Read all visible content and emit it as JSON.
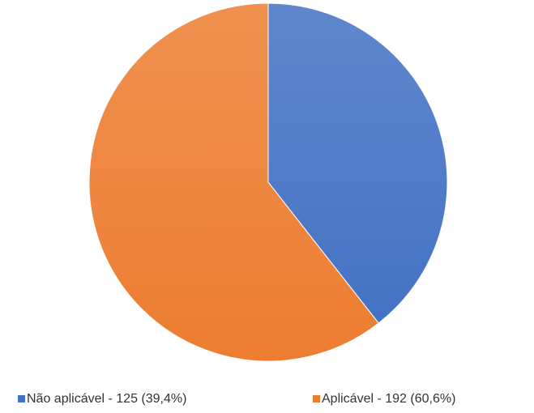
{
  "chart_data": {
    "type": "pie",
    "categories": [
      "Não aplicável - 125 (39,4%)",
      "Aplicável - 192 (60,6%)"
    ],
    "values": [
      125,
      192
    ],
    "colors": [
      "#4472c4",
      "#ed7d31"
    ],
    "legend": "bottom"
  }
}
